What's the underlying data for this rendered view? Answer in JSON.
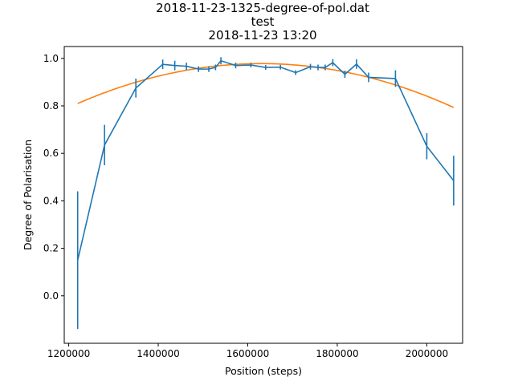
{
  "chart_data": {
    "type": "line",
    "title_lines": [
      "2018-11-23-1325-degree-of-pol.dat",
      "test",
      "2018-11-23 13:20"
    ],
    "xlabel": "Position (steps)",
    "ylabel": "Degree of Polarisation",
    "xlim": [
      1190000,
      2080000
    ],
    "ylim": [
      -0.2,
      1.05
    ],
    "x_ticks": [
      1200000,
      1400000,
      1600000,
      1800000,
      2000000
    ],
    "y_ticks": [
      0.0,
      0.2,
      0.4,
      0.6,
      0.8,
      1.0
    ],
    "grid": false,
    "series": [
      {
        "kind": "measured",
        "color": "#1f77b4",
        "points": [
          {
            "x": 1220000,
            "y": 0.15,
            "err": 0.29
          },
          {
            "x": 1280000,
            "y": 0.635,
            "err": 0.085
          },
          {
            "x": 1350000,
            "y": 0.875,
            "err": 0.04
          },
          {
            "x": 1410000,
            "y": 0.975,
            "err": 0.02
          },
          {
            "x": 1437000,
            "y": 0.97,
            "err": 0.02
          },
          {
            "x": 1463000,
            "y": 0.967,
            "err": 0.015
          },
          {
            "x": 1490000,
            "y": 0.955,
            "err": 0.012
          },
          {
            "x": 1513000,
            "y": 0.955,
            "err": 0.012
          },
          {
            "x": 1528000,
            "y": 0.962,
            "err": 0.012
          },
          {
            "x": 1540000,
            "y": 0.99,
            "err": 0.015
          },
          {
            "x": 1573000,
            "y": 0.97,
            "err": 0.012
          },
          {
            "x": 1607000,
            "y": 0.972,
            "err": 0.01
          },
          {
            "x": 1640000,
            "y": 0.962,
            "err": 0.01
          },
          {
            "x": 1673000,
            "y": 0.963,
            "err": 0.01
          },
          {
            "x": 1707000,
            "y": 0.94,
            "err": 0.01
          },
          {
            "x": 1740000,
            "y": 0.965,
            "err": 0.012
          },
          {
            "x": 1757000,
            "y": 0.962,
            "err": 0.012
          },
          {
            "x": 1773000,
            "y": 0.962,
            "err": 0.012
          },
          {
            "x": 1790000,
            "y": 0.982,
            "err": 0.015
          },
          {
            "x": 1817000,
            "y": 0.933,
            "err": 0.015
          },
          {
            "x": 1843000,
            "y": 0.976,
            "err": 0.02
          },
          {
            "x": 1870000,
            "y": 0.92,
            "err": 0.02
          },
          {
            "x": 1930000,
            "y": 0.915,
            "err": 0.035
          },
          {
            "x": 2000000,
            "y": 0.63,
            "err": 0.055
          },
          {
            "x": 2060000,
            "y": 0.485,
            "err": 0.105
          }
        ]
      },
      {
        "kind": "fit",
        "color": "#ff7f0e",
        "model": "quadratic",
        "vertex_x": 1630000,
        "vertex_y": 0.978,
        "curvature": 1e-12,
        "x_range": [
          1220000,
          2060000
        ]
      }
    ]
  }
}
